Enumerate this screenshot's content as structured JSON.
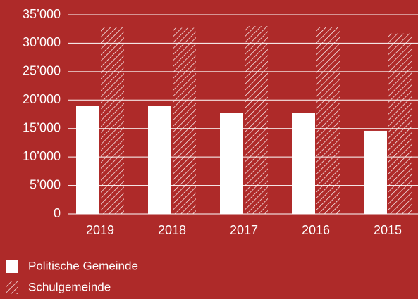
{
  "chart_data": {
    "type": "bar",
    "categories": [
      "2019",
      "2018",
      "2017",
      "2016",
      "2015"
    ],
    "series": [
      {
        "name": "Politische Gemeinde",
        "color": "#ffffff",
        "hatch": false,
        "values": [
          19000,
          19000,
          17800,
          17700,
          14600
        ]
      },
      {
        "name": "Schulgemeinde",
        "color": "#ffffff",
        "hatch": true,
        "values": [
          32800,
          32700,
          33000,
          32800,
          31700
        ]
      }
    ],
    "ylim": [
      0,
      35000
    ],
    "yticks": [
      {
        "value": 0,
        "label": "0"
      },
      {
        "value": 5000,
        "label": "5’000"
      },
      {
        "value": 10000,
        "label": "10’000"
      },
      {
        "value": 15000,
        "label": "15’000"
      },
      {
        "value": 20000,
        "label": "20’000"
      },
      {
        "value": 25000,
        "label": "25’000"
      },
      {
        "value": 30000,
        "label": "30’000"
      },
      {
        "value": 35000,
        "label": "35’000"
      }
    ],
    "grid": true,
    "legend": "bottom-left",
    "background": "#ae2a29"
  }
}
